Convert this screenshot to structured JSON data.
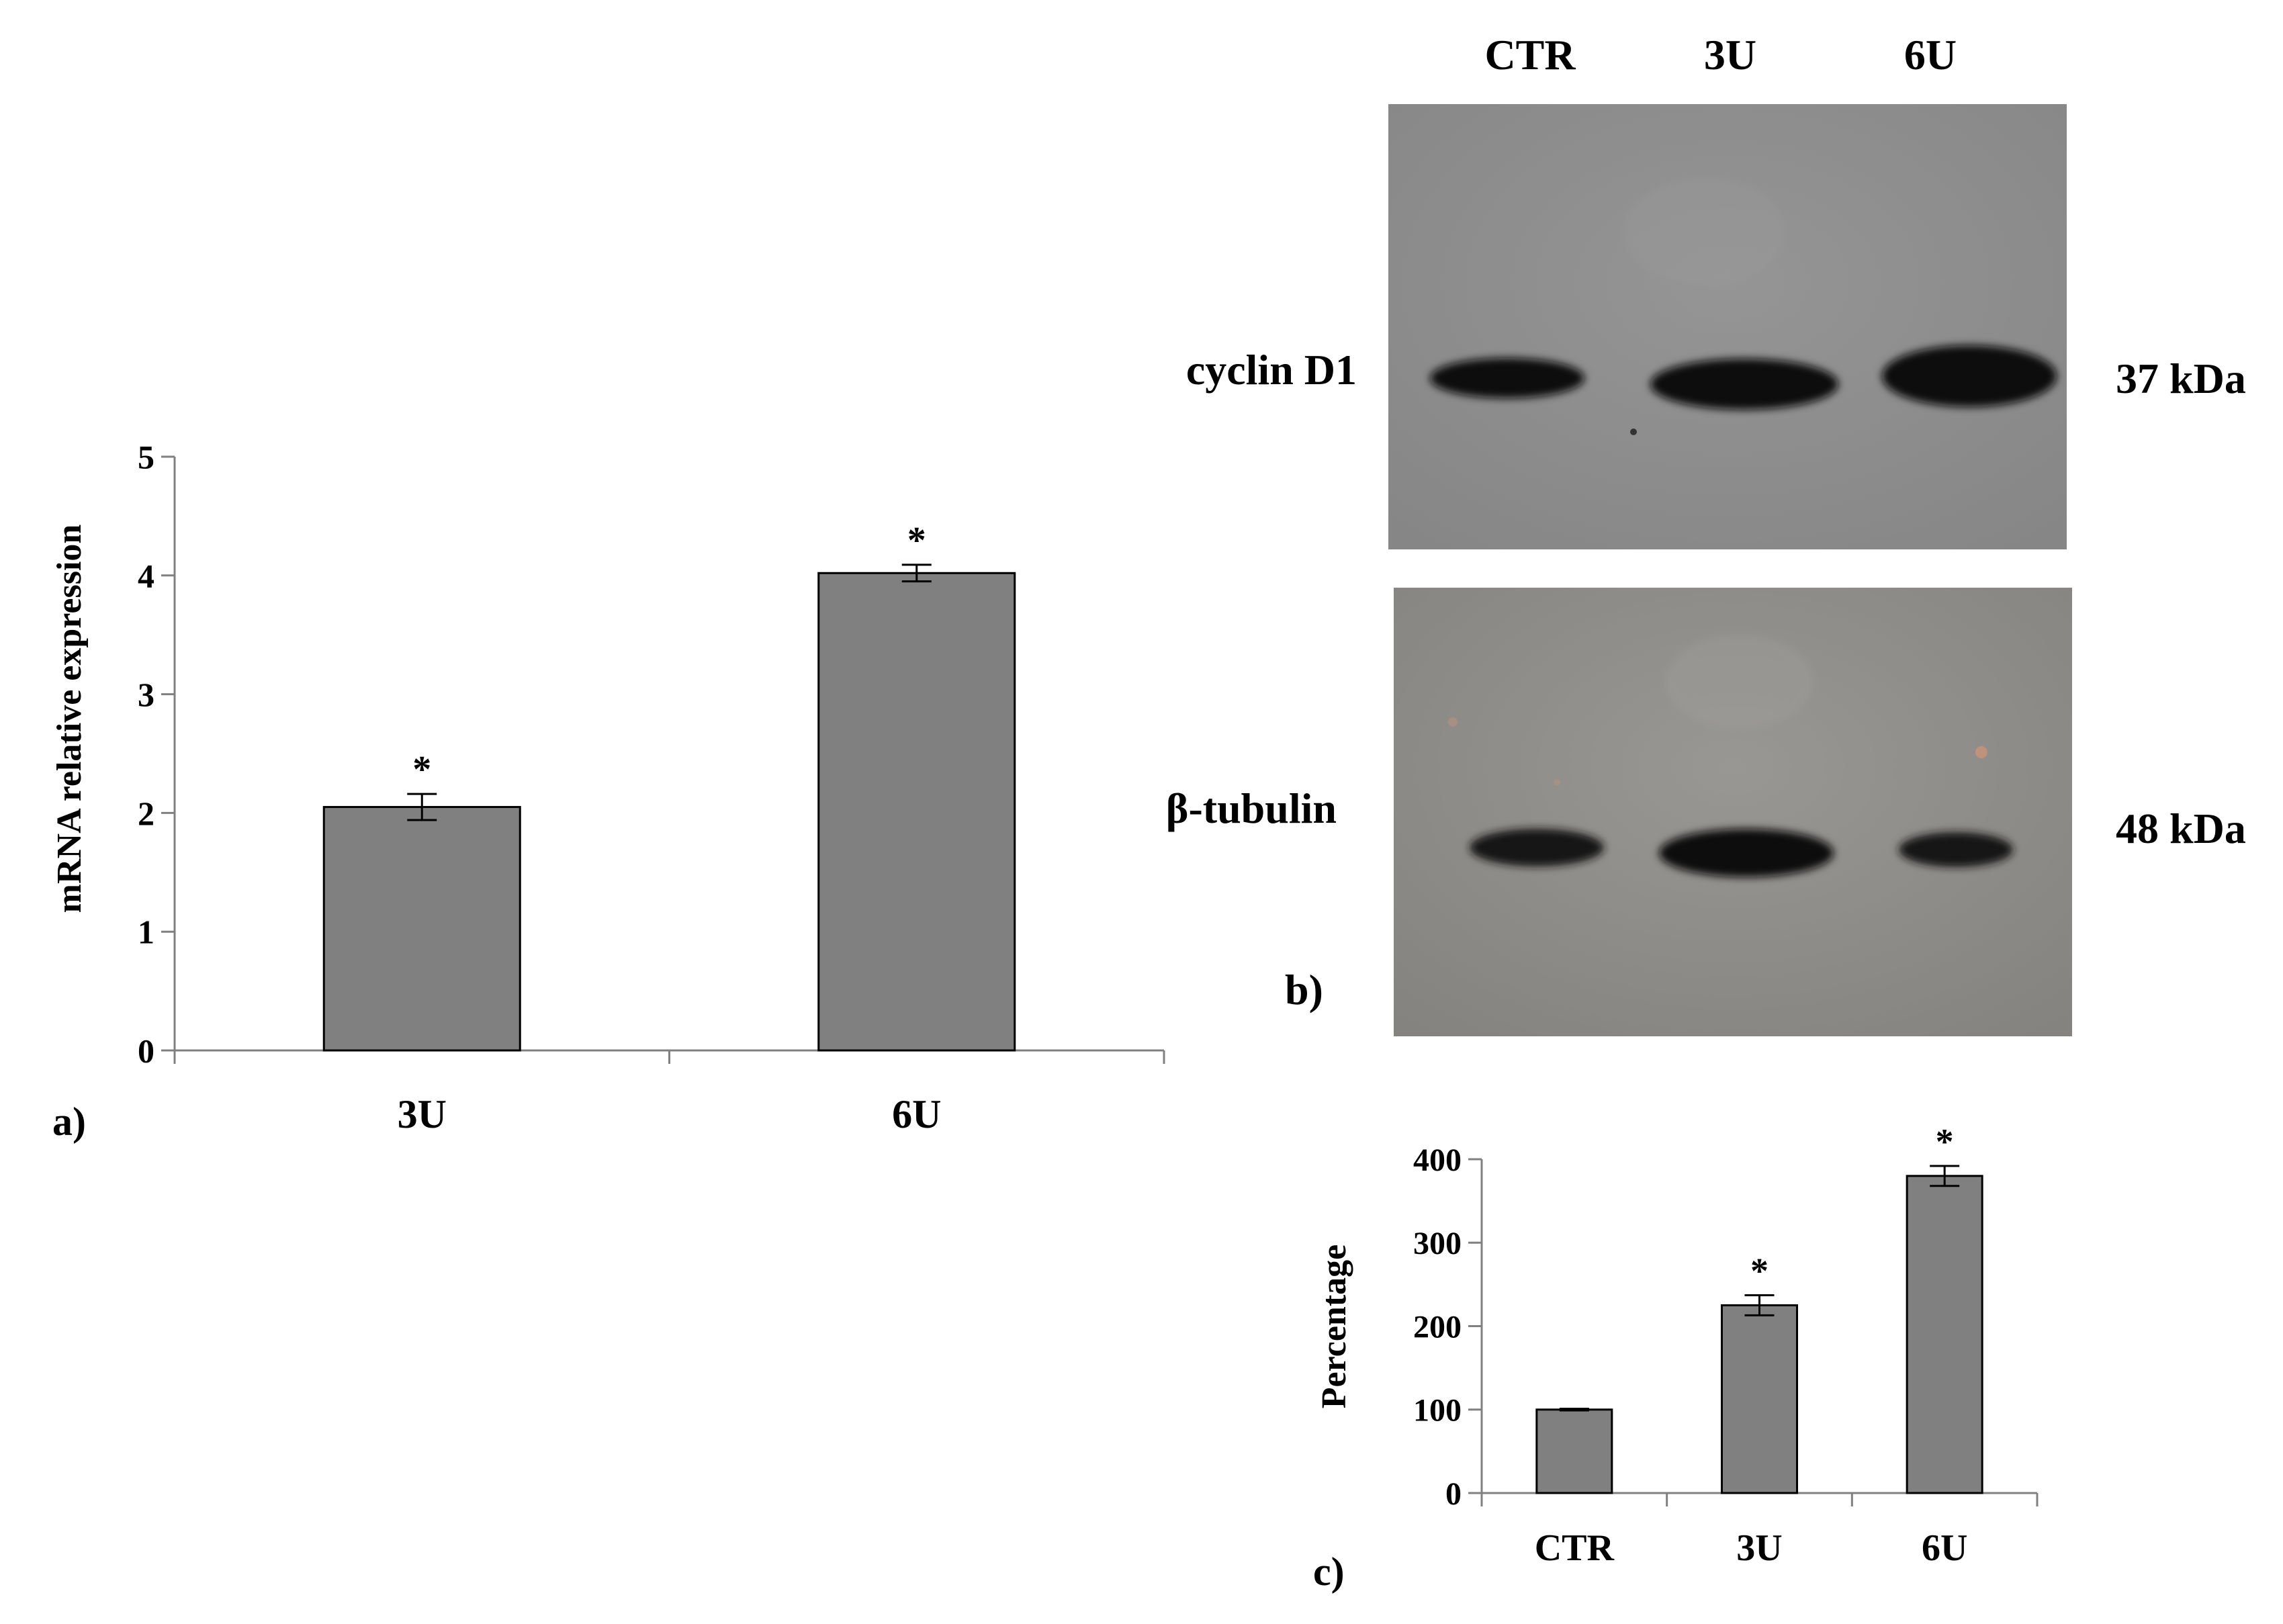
{
  "chart_data": [
    {
      "type": "bar",
      "panel_label": "a)",
      "categories": [
        "3U",
        "6U"
      ],
      "values": [
        2.05,
        4.02
      ],
      "errors": [
        0.11,
        0.07
      ],
      "significance": [
        "*",
        "*"
      ],
      "ylabel": "mRNA relative expression",
      "ylim": [
        0,
        5
      ],
      "yticks": [
        0,
        1,
        2,
        3,
        4,
        5
      ]
    },
    {
      "type": "bar",
      "panel_label": "c)",
      "categories": [
        "CTR",
        "3U",
        "6U"
      ],
      "values": [
        100,
        225,
        380
      ],
      "errors": [
        1,
        12,
        12
      ],
      "significance": [
        "",
        "*",
        "*"
      ],
      "ylabel": "Percentage",
      "ylim": [
        0,
        400
      ],
      "yticks": [
        0,
        100,
        200,
        300,
        400
      ]
    }
  ],
  "blot": {
    "panel_label": "b)",
    "lanes": [
      "CTR",
      "3U",
      "6U"
    ],
    "rows": [
      {
        "protein": "cyclin D1",
        "size": "37 kDa"
      },
      {
        "protein": "β-tubulin",
        "size": "48 kDa"
      }
    ]
  }
}
